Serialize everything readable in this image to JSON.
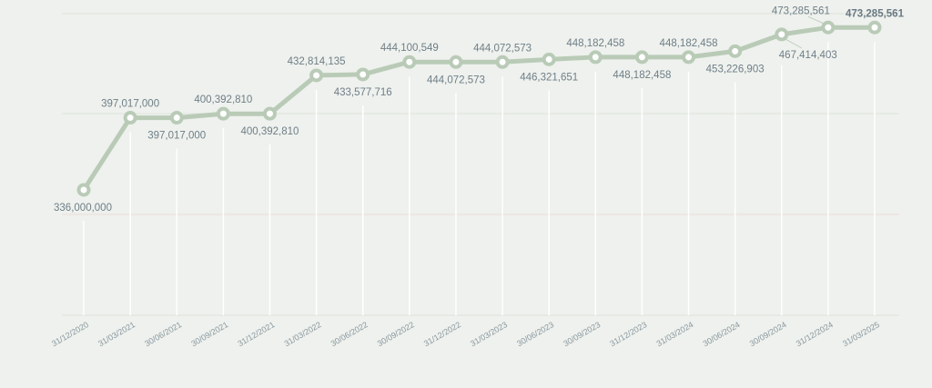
{
  "chart_data": {
    "type": "line",
    "title": "",
    "xlabel": "",
    "ylabel": "",
    "ylim": [
      230000000,
      485000000
    ],
    "grid": true,
    "legend": "none",
    "colors": {
      "line": "#b9cbb7",
      "marker_fill": "#ffffff",
      "label": "#6f7e87",
      "background": "#eef1ed"
    },
    "categories": [
      "31/12/2020",
      "31/03/2021",
      "30/06/2021",
      "30/09/2021",
      "31/12/2021",
      "31/03/2022",
      "30/06/2022",
      "30/09/2022",
      "31/12/2022",
      "31/03/2023",
      "30/06/2023",
      "30/09/2023",
      "31/12/2023",
      "31/03/2024",
      "30/06/2024",
      "30/09/2024",
      "31/12/2024",
      "31/03/2025"
    ],
    "series": [
      {
        "values": [
          336000000,
          397017000,
          397017000,
          400392810,
          400392810,
          432814135,
          433577716,
          444100549,
          444072573,
          444072573,
          446321651,
          448182458,
          448182458,
          448182458,
          453226903,
          467414403,
          473285561,
          473285561
        ],
        "labels": [
          "336,000,000",
          "397,017,000",
          "397,017,000",
          "400,392,810",
          "400,392,810",
          "432,814,135",
          "433,577,716",
          "444,100,549",
          "444,072,573",
          "444,072,573",
          "446,321,651",
          "448,182,458",
          "448,182,458",
          "448,182,458",
          "453,226,903",
          "467,414,403",
          "473,285,561",
          "473,285,561"
        ],
        "label_pos": [
          "below",
          "above",
          "below",
          "above",
          "below",
          "above",
          "below",
          "above",
          "below",
          "above",
          "below",
          "above",
          "below",
          "above",
          "below",
          "below",
          "above",
          "above"
        ]
      }
    ]
  }
}
